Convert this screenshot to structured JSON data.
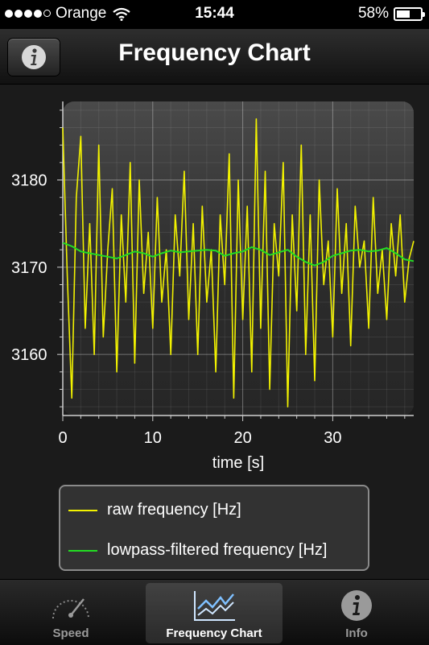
{
  "status_bar": {
    "carrier": "Orange",
    "time": "15:44",
    "battery_percent": "58%",
    "battery_level": 0.58,
    "signal_bars": 4,
    "signal_max": 5
  },
  "nav_bar": {
    "title": "Frequency Chart",
    "info_button_icon": "info-icon"
  },
  "chart_data": {
    "type": "line",
    "xlabel": "time [s]",
    "ylabel": "",
    "xlim": [
      0,
      39
    ],
    "ylim": [
      3153,
      3189
    ],
    "xticks": [
      0,
      10,
      20,
      30
    ],
    "yticks": [
      3160,
      3170,
      3180
    ],
    "grid": true,
    "legend_position": "bottom",
    "series": [
      {
        "name": "raw frequency [Hz]",
        "color": "#f2f200",
        "x": [
          0,
          0.5,
          1,
          1.5,
          2,
          2.5,
          3,
          3.5,
          4,
          4.5,
          5,
          5.5,
          6,
          6.5,
          7,
          7.5,
          8,
          8.5,
          9,
          9.5,
          10,
          10.5,
          11,
          11.5,
          12,
          12.5,
          13,
          13.5,
          14,
          14.5,
          15,
          15.5,
          16,
          16.5,
          17,
          17.5,
          18,
          18.5,
          19,
          19.5,
          20,
          20.5,
          21,
          21.5,
          22,
          22.5,
          23,
          23.5,
          24,
          24.5,
          25,
          25.5,
          26,
          26.5,
          27,
          27.5,
          28,
          28.5,
          29,
          29.5,
          30,
          30.5,
          31,
          31.5,
          32,
          32.5,
          33,
          33.5,
          34,
          34.5,
          35,
          35.5,
          36,
          36.5,
          37,
          37.5,
          38,
          38.5,
          39
        ],
        "values": [
          3186,
          3169,
          3155,
          3178,
          3185,
          3163,
          3175,
          3160,
          3184,
          3162,
          3172,
          3179,
          3158,
          3176,
          3166,
          3182,
          3159,
          3180,
          3167,
          3174,
          3163,
          3178,
          3166,
          3172,
          3160,
          3176,
          3169,
          3181,
          3164,
          3175,
          3160,
          3177,
          3166,
          3172,
          3158,
          3176,
          3168,
          3183,
          3155,
          3180,
          3164,
          3177,
          3158,
          3187,
          3163,
          3181,
          3156,
          3175,
          3169,
          3182,
          3154,
          3176,
          3165,
          3184,
          3160,
          3176,
          3157,
          3180,
          3168,
          3173,
          3162,
          3179,
          3167,
          3175,
          3161,
          3177,
          3170,
          3173,
          3163,
          3178,
          3167,
          3172,
          3164,
          3175,
          3169,
          3176,
          3166,
          3171,
          3173
        ]
      },
      {
        "name": "lowpass-filtered frequency [Hz]",
        "color": "#22dd22",
        "x": [
          0,
          1,
          2,
          3,
          4,
          5,
          6,
          7,
          8,
          9,
          10,
          11,
          12,
          13,
          14,
          15,
          16,
          17,
          18,
          19,
          20,
          21,
          22,
          23,
          24,
          25,
          26,
          27,
          28,
          29,
          30,
          31,
          32,
          33,
          34,
          35,
          36,
          37,
          38,
          39
        ],
        "values": [
          3172.8,
          3172.4,
          3171.8,
          3171.6,
          3171.4,
          3171.2,
          3171.0,
          3171.4,
          3171.8,
          3171.6,
          3171.2,
          3171.6,
          3171.9,
          3171.7,
          3171.8,
          3171.9,
          3172.0,
          3171.9,
          3171.3,
          3171.6,
          3171.8,
          3172.3,
          3172.0,
          3171.4,
          3171.7,
          3172.0,
          3171.2,
          3170.6,
          3170.2,
          3170.6,
          3171.3,
          3171.6,
          3171.9,
          3172.0,
          3171.8,
          3171.9,
          3172.2,
          3171.6,
          3170.9,
          3170.7
        ]
      }
    ]
  },
  "legend": {
    "items": [
      {
        "label": "raw frequency [Hz]",
        "color": "#f2f200"
      },
      {
        "label": "lowpass-filtered frequency [Hz]",
        "color": "#22dd22"
      }
    ]
  },
  "tab_bar": {
    "tabs": [
      {
        "label": "Speed",
        "icon": "speedometer-icon",
        "selected": false
      },
      {
        "label": "Frequency Chart",
        "icon": "line-chart-icon",
        "selected": true
      },
      {
        "label": "Info",
        "icon": "info-icon",
        "selected": false
      }
    ]
  }
}
